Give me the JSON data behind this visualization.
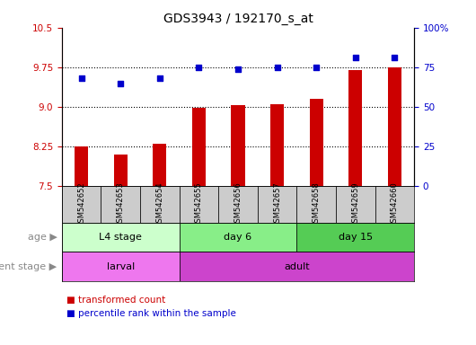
{
  "title": "GDS3943 / 192170_s_at",
  "samples": [
    "GSM542652",
    "GSM542653",
    "GSM542654",
    "GSM542655",
    "GSM542656",
    "GSM542657",
    "GSM542658",
    "GSM542659",
    "GSM542660"
  ],
  "transformed_count": [
    8.25,
    8.1,
    8.3,
    8.99,
    9.04,
    9.05,
    9.15,
    9.69,
    9.75
  ],
  "percentile_rank": [
    68,
    65,
    68,
    75,
    74,
    75,
    75,
    81,
    81
  ],
  "ylim_left": [
    7.5,
    10.5
  ],
  "ylim_right": [
    0,
    100
  ],
  "yticks_left": [
    7.5,
    8.25,
    9.0,
    9.75,
    10.5
  ],
  "yticks_right": [
    0,
    25,
    50,
    75,
    100
  ],
  "ytick_labels_right": [
    "0",
    "25",
    "50",
    "75",
    "100%"
  ],
  "hlines": [
    8.25,
    9.0,
    9.75
  ],
  "bar_color": "#cc0000",
  "dot_color": "#0000cc",
  "age_groups": [
    {
      "label": "L4 stage",
      "start": 0,
      "end": 3,
      "color": "#ccffcc"
    },
    {
      "label": "day 6",
      "start": 3,
      "end": 6,
      "color": "#88ee88"
    },
    {
      "label": "day 15",
      "start": 6,
      "end": 9,
      "color": "#55cc55"
    }
  ],
  "dev_groups": [
    {
      "label": "larval",
      "start": 0,
      "end": 3,
      "color": "#ee77ee"
    },
    {
      "label": "adult",
      "start": 3,
      "end": 9,
      "color": "#cc44cc"
    }
  ],
  "age_label": "age",
  "dev_label": "development stage",
  "legend_bar_label": "transformed count",
  "legend_dot_label": "percentile rank within the sample",
  "sample_box_color": "#cccccc",
  "title_fontsize": 10,
  "tick_fontsize": 7.5,
  "label_fontsize": 8,
  "bar_width": 0.35
}
